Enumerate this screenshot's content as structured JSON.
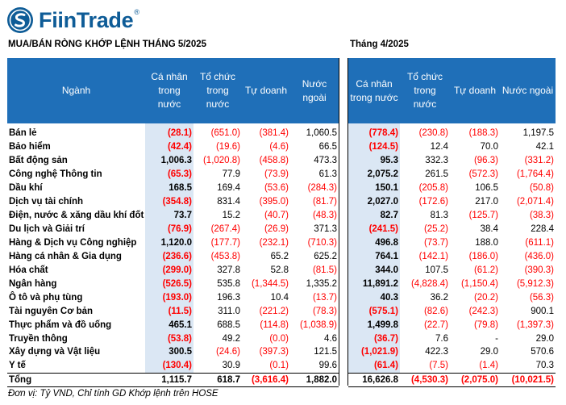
{
  "brand": {
    "name": "FiinTrade",
    "reg": "®"
  },
  "left_title": "MUA/BÁN RÒNG KHỚP LỆNH  THÁNG 5/2025",
  "right_title": "Tháng 4/2025",
  "headers": {
    "sector": "Ngành",
    "individual": "Cá nhân trong nước",
    "institution": "Tổ chức trong nước",
    "proprietary": "Tự doanh",
    "foreign": "Nước ngoài"
  },
  "rows": [
    {
      "name": "Bán lẻ",
      "may": [
        "(28.1)",
        "(651.0)",
        "(381.4)",
        "1,060.5"
      ],
      "apr": [
        "(778.4)",
        "(230.8)",
        "(188.3)",
        "1,197.5"
      ]
    },
    {
      "name": "Bảo hiểm",
      "may": [
        "(42.4)",
        "(19.6)",
        "(4.6)",
        "66.5"
      ],
      "apr": [
        "(124.5)",
        "12.4",
        "70.0",
        "42.1"
      ]
    },
    {
      "name": "Bất động sản",
      "may": [
        "1,006.3",
        "(1,020.8)",
        "(458.8)",
        "473.3"
      ],
      "apr": [
        "95.3",
        "332.3",
        "(96.3)",
        "(331.2)"
      ]
    },
    {
      "name": "Công nghệ Thông tin",
      "may": [
        "(65.3)",
        "77.9",
        "(73.9)",
        "61.3"
      ],
      "apr": [
        "2,075.2",
        "261.5",
        "(572.3)",
        "(1,764.4)"
      ]
    },
    {
      "name": "Dầu khí",
      "may": [
        "168.5",
        "169.4",
        "(53.6)",
        "(284.3)"
      ],
      "apr": [
        "150.1",
        "(205.8)",
        "106.5",
        "(50.8)"
      ]
    },
    {
      "name": "Dịch vụ tài chính",
      "may": [
        "(354.8)",
        "831.4",
        "(395.0)",
        "(81.7)"
      ],
      "apr": [
        "2,027.0",
        "(172.6)",
        "217.0",
        "(2,071.4)"
      ]
    },
    {
      "name": "Điện, nước & xăng dầu khí đốt",
      "may": [
        "73.7",
        "15.2",
        "(40.7)",
        "(48.3)"
      ],
      "apr": [
        "82.7",
        "81.3",
        "(125.7)",
        "(38.3)"
      ]
    },
    {
      "name": "Du lịch và Giải trí",
      "may": [
        "(76.9)",
        "(267.4)",
        "(26.9)",
        "371.3"
      ],
      "apr": [
        "(241.5)",
        "(25.2)",
        "38.4",
        "228.4"
      ]
    },
    {
      "name": "Hàng & Dịch vụ Công nghiệp",
      "may": [
        "1,120.0",
        "(177.7)",
        "(232.1)",
        "(710.3)"
      ],
      "apr": [
        "496.8",
        "(73.7)",
        "188.0",
        "(611.1)"
      ]
    },
    {
      "name": "Hàng cá nhân & Gia dụng",
      "may": [
        "(236.6)",
        "(453.8)",
        "65.2",
        "625.2"
      ],
      "apr": [
        "764.1",
        "(142.1)",
        "(186.0)",
        "(436.0)"
      ]
    },
    {
      "name": "Hóa chất",
      "may": [
        "(299.0)",
        "327.8",
        "52.8",
        "(81.5)"
      ],
      "apr": [
        "344.0",
        "107.5",
        "(61.2)",
        "(390.3)"
      ]
    },
    {
      "name": "Ngân hàng",
      "may": [
        "(526.5)",
        "535.8",
        "(1,344.5)",
        "1,335.2"
      ],
      "apr": [
        "11,891.2",
        "(4,828.4)",
        "(1,150.4)",
        "(5,912.3)"
      ]
    },
    {
      "name": "Ô tô và phụ tùng",
      "may": [
        "(193.0)",
        "196.3",
        "10.4",
        "(13.7)"
      ],
      "apr": [
        "40.3",
        "36.2",
        "(20.2)",
        "(56.3)"
      ]
    },
    {
      "name": "Tài nguyên Cơ bản",
      "may": [
        "(11.5)",
        "311.0",
        "(221.2)",
        "(78.3)"
      ],
      "apr": [
        "(575.1)",
        "(82.6)",
        "(242.3)",
        "900.1"
      ]
    },
    {
      "name": "Thực phẩm và đồ uống",
      "may": [
        "465.1",
        "688.5",
        "(114.8)",
        "(1,038.9)"
      ],
      "apr": [
        "1,499.8",
        "(22.7)",
        "(79.8)",
        "(1,397.3)"
      ]
    },
    {
      "name": "Truyền thông",
      "may": [
        "(53.8)",
        "49.2",
        "(0.0)",
        "4.6"
      ],
      "apr": [
        "(36.7)",
        "7.6",
        "-",
        "29.0"
      ]
    },
    {
      "name": "Xây dựng và Vật liệu",
      "may": [
        "300.5",
        "(24.6)",
        "(397.3)",
        "121.5"
      ],
      "apr": [
        "(1,021.9)",
        "422.3",
        "29.0",
        "570.6"
      ]
    },
    {
      "name": "Y tế",
      "may": [
        "(130.4)",
        "30.9",
        "(0.1)",
        "99.6"
      ],
      "apr": [
        "(61.4)",
        "(7.5)",
        "(1.4)",
        "70.3"
      ]
    }
  ],
  "total": {
    "name": "Tổng",
    "may": [
      "1,115.7",
      "618.7",
      "(3,616.4)",
      "1,882.0"
    ],
    "apr": [
      "16,626.8",
      "(4,530.3)",
      "(2,075.0)",
      "(10,021.5)"
    ]
  },
  "footnote": "Đơn vị: Tỷ VND, Chỉ tính GD Khớp lệnh trên HOSE",
  "colors": {
    "header_bg": "#1f6fb8",
    "highlight": "#dbe7f4",
    "negative": "#ff0000",
    "brand": "#0e5c97"
  }
}
